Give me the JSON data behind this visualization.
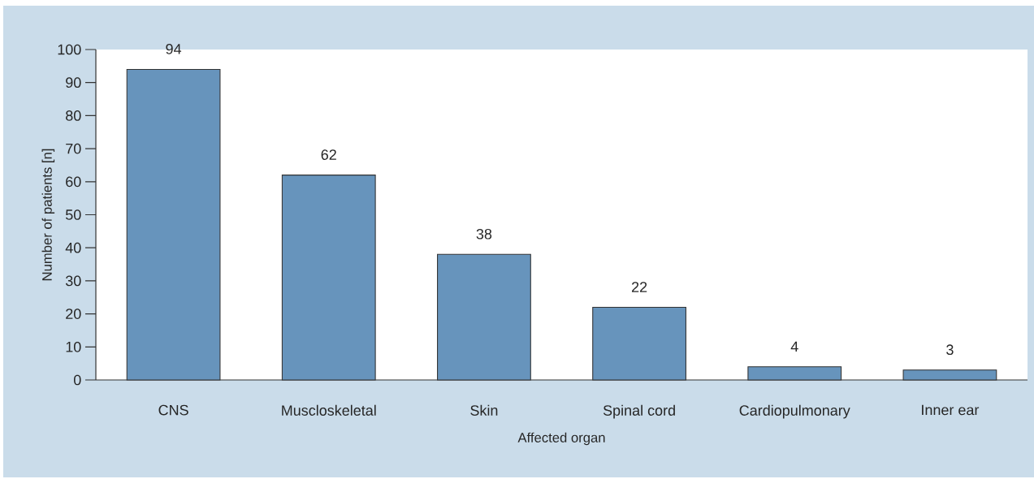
{
  "chart_data": {
    "type": "bar",
    "xlabel": "Affected organ",
    "ylabel": "Number of patients [n]",
    "categories": [
      "CNS",
      "Muscloskeletal",
      "Skin",
      "Spinal cord",
      "Cardiopulmonary",
      "Inner ear"
    ],
    "values": [
      94,
      62,
      38,
      22,
      4,
      3
    ],
    "color": "#6794bc",
    "ylim": [
      0,
      100
    ],
    "yticks": [
      0,
      10,
      20,
      30,
      40,
      50,
      60,
      70,
      80,
      90,
      100
    ],
    "data_labels": true
  }
}
